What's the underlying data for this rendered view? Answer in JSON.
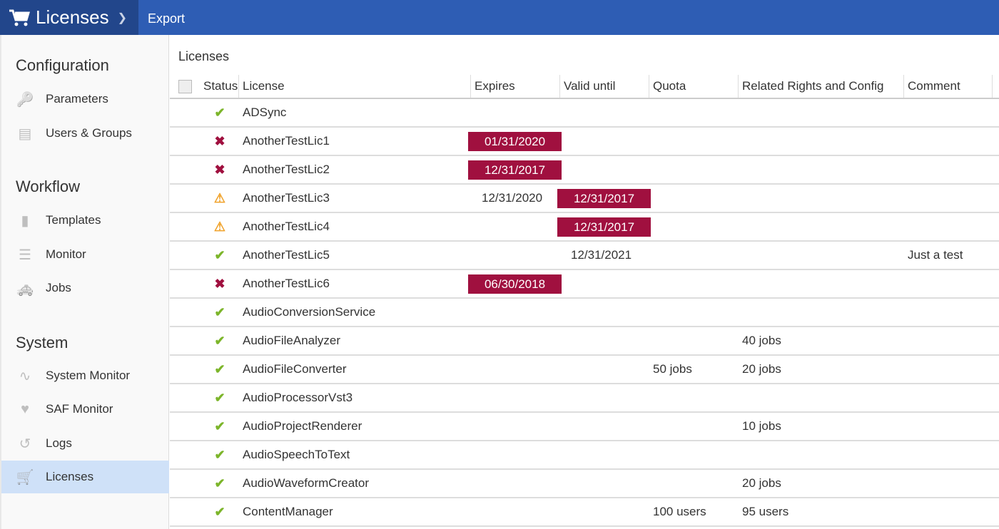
{
  "topbar": {
    "title": "Licenses",
    "export_label": "Export"
  },
  "sidebar": {
    "sections": [
      {
        "title": "Configuration",
        "items": [
          {
            "label": "Parameters",
            "icon": "key-icon"
          },
          {
            "label": "Users & Groups",
            "icon": "id-card-icon"
          }
        ]
      },
      {
        "title": "Workflow",
        "items": [
          {
            "label": "Templates",
            "icon": "chip-icon"
          },
          {
            "label": "Monitor",
            "icon": "server-icon"
          },
          {
            "label": "Jobs",
            "icon": "taxi-icon"
          }
        ]
      },
      {
        "title": "System",
        "items": [
          {
            "label": "System Monitor",
            "icon": "heartbeat-icon"
          },
          {
            "label": "SAF Monitor",
            "icon": "heart-pulse-icon"
          },
          {
            "label": "Logs",
            "icon": "history-icon"
          },
          {
            "label": "Licenses",
            "icon": "cart-icon",
            "active": true
          }
        ]
      }
    ]
  },
  "main": {
    "title": "Licenses",
    "columns": [
      "Status",
      "License",
      "Expires",
      "Valid until",
      "Quota",
      "Related Rights and Config",
      "Comment"
    ],
    "rows": [
      {
        "status": "ok",
        "license": "ADSync",
        "expires": "",
        "expires_alert": false,
        "valid": "",
        "valid_alert": false,
        "quota": "",
        "related": "",
        "comment": ""
      },
      {
        "status": "error",
        "license": "AnotherTestLic1",
        "expires": "01/31/2020",
        "expires_alert": true,
        "valid": "",
        "valid_alert": false,
        "quota": "",
        "related": "",
        "comment": ""
      },
      {
        "status": "error",
        "license": "AnotherTestLic2",
        "expires": "12/31/2017",
        "expires_alert": true,
        "valid": "",
        "valid_alert": false,
        "quota": "",
        "related": "",
        "comment": ""
      },
      {
        "status": "warning",
        "license": "AnotherTestLic3",
        "expires": "12/31/2020",
        "expires_alert": false,
        "valid": "12/31/2017",
        "valid_alert": true,
        "quota": "",
        "related": "",
        "comment": ""
      },
      {
        "status": "warning",
        "license": "AnotherTestLic4",
        "expires": "",
        "expires_alert": false,
        "valid": "12/31/2017",
        "valid_alert": true,
        "quota": "",
        "related": "",
        "comment": ""
      },
      {
        "status": "ok",
        "license": "AnotherTestLic5",
        "expires": "",
        "expires_alert": false,
        "valid": "12/31/2021",
        "valid_alert": false,
        "quota": "",
        "related": "",
        "comment": "Just a test"
      },
      {
        "status": "error",
        "license": "AnotherTestLic6",
        "expires": "06/30/2018",
        "expires_alert": true,
        "valid": "",
        "valid_alert": false,
        "quota": "",
        "related": "",
        "comment": ""
      },
      {
        "status": "ok",
        "license": "AudioConversionService",
        "expires": "",
        "expires_alert": false,
        "valid": "",
        "valid_alert": false,
        "quota": "",
        "related": "",
        "comment": ""
      },
      {
        "status": "ok",
        "license": "AudioFileAnalyzer",
        "expires": "",
        "expires_alert": false,
        "valid": "",
        "valid_alert": false,
        "quota": "",
        "related": "40 jobs",
        "comment": ""
      },
      {
        "status": "ok",
        "license": "AudioFileConverter",
        "expires": "",
        "expires_alert": false,
        "valid": "",
        "valid_alert": false,
        "quota": "50 jobs",
        "related": "20 jobs",
        "comment": ""
      },
      {
        "status": "ok",
        "license": "AudioProcessorVst3",
        "expires": "",
        "expires_alert": false,
        "valid": "",
        "valid_alert": false,
        "quota": "",
        "related": "",
        "comment": ""
      },
      {
        "status": "ok",
        "license": "AudioProjectRenderer",
        "expires": "",
        "expires_alert": false,
        "valid": "",
        "valid_alert": false,
        "quota": "",
        "related": "10 jobs",
        "comment": ""
      },
      {
        "status": "ok",
        "license": "AudioSpeechToText",
        "expires": "",
        "expires_alert": false,
        "valid": "",
        "valid_alert": false,
        "quota": "",
        "related": "",
        "comment": ""
      },
      {
        "status": "ok",
        "license": "AudioWaveformCreator",
        "expires": "",
        "expires_alert": false,
        "valid": "",
        "valid_alert": false,
        "quota": "",
        "related": "20 jobs",
        "comment": ""
      },
      {
        "status": "ok",
        "license": "ContentManager",
        "expires": "",
        "expires_alert": false,
        "valid": "",
        "valid_alert": false,
        "quota": "100 users",
        "related": "95 users",
        "comment": ""
      }
    ]
  },
  "colors": {
    "topbar": "#2e5db4",
    "brand": "#22468b",
    "alert": "#a0103f",
    "ok": "#7cb52a",
    "warning": "#f0a22a",
    "active": "#cfe1f8"
  }
}
